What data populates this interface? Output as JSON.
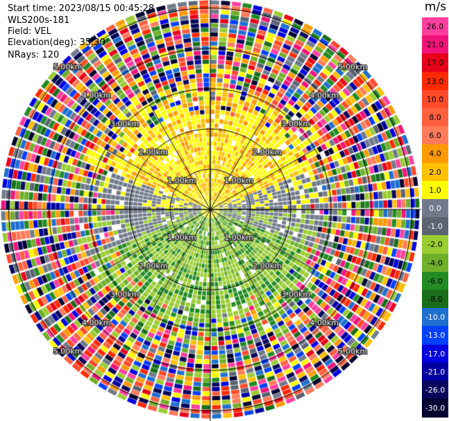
{
  "header": {
    "start_time": "Start time: 2023/08/15 00:45:28",
    "instrument": "WLS200s-181",
    "field": "Field: VEL",
    "elevation": "Elevation(deg): 35.30",
    "nrays": "NRays: 120"
  },
  "colorbar": {
    "unit": "m/s",
    "ticks": [
      "26.0",
      "21.0",
      "17.0",
      "13.0",
      "10.0",
      "8.0",
      "6.0",
      "4.0",
      "2.0",
      "1.0",
      "0.0",
      "-1.0",
      "-2.0",
      "-4.0",
      "-6.0",
      "-8.0",
      "-10.0",
      "-13.0",
      "-17.0",
      "-21.0",
      "-26.0",
      "-30.0"
    ],
    "colors": [
      "#ff3fa0",
      "#f2137a",
      "#e8001a",
      "#ff2a00",
      "#ff4a2a",
      "#ff6040",
      "#ff7c5a",
      "#ff9a00",
      "#ffc000",
      "#ffff00",
      "#707a8a",
      "#5a6473",
      "#9acd32",
      "#6fb02a",
      "#238b23",
      "#1a6e1a",
      "#1e6fd0",
      "#0040ff",
      "#0000e0",
      "#0000a0",
      "#06065a",
      "#000030"
    ]
  },
  "chart_data": {
    "type": "heatmap",
    "title": "",
    "projection": "polar (PPI)",
    "field": "VEL",
    "units": "m/s",
    "nrays": 120,
    "elevation_deg": 35.3,
    "range_ring_labels_km": [
      "1.00km",
      "2.00km",
      "3.00km",
      "4.00km",
      "5.00km"
    ],
    "range_rings_km": [
      1,
      2,
      3,
      4,
      5
    ],
    "color_levels": [
      26,
      21,
      17,
      13,
      10,
      8,
      6,
      4,
      2,
      1,
      0,
      -1,
      -2,
      -4,
      -6,
      -8,
      -10,
      -13,
      -17,
      -21,
      -26,
      -30
    ],
    "pattern": {
      "north_inner": "positive 2 to 6 m/s (yellow/orange)",
      "south_inner": "negative -2 to -8 m/s (green)",
      "east_west_inner": "near zero (grey)",
      "outer_ranges": "noisy, all colors"
    }
  }
}
